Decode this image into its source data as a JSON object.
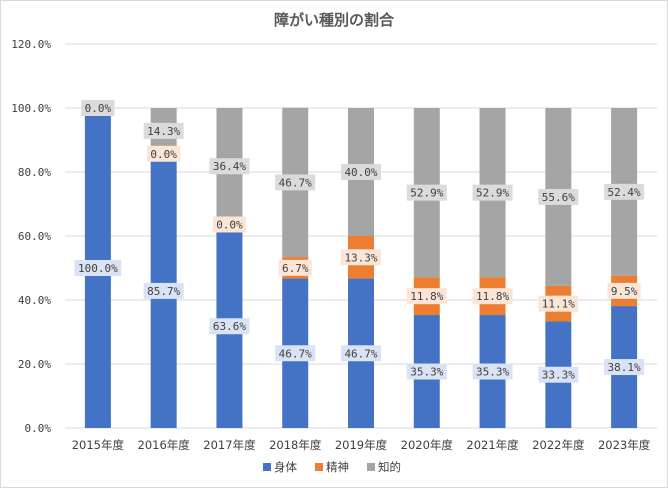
{
  "chart_data": {
    "type": "bar",
    "stacked": true,
    "title": "障がい種別の割合",
    "xlabel": "",
    "ylabel": "",
    "ylim": [
      0,
      120
    ],
    "yticks": [
      "0.0%",
      "20.0%",
      "40.0%",
      "60.0%",
      "80.0%",
      "100.0%",
      "120.0%"
    ],
    "ytick_values": [
      0,
      20,
      40,
      60,
      80,
      100,
      120
    ],
    "grid": true,
    "legend_position": "bottom",
    "categories": [
      "2015年度",
      "2016年度",
      "2017年度",
      "2018年度",
      "2019年度",
      "2020年度",
      "2021年度",
      "2022年度",
      "2023年度"
    ],
    "series": [
      {
        "name": "身体",
        "color": "#4472c4",
        "label_bg": "#dae3f3",
        "values": [
          100.0,
          85.7,
          63.6,
          46.7,
          46.7,
          35.3,
          35.3,
          33.3,
          38.1
        ],
        "labels": [
          "100.0%",
          "85.7%",
          "63.6%",
          "46.7%",
          "46.7%",
          "35.3%",
          "35.3%",
          "33.3%",
          "38.1%"
        ]
      },
      {
        "name": "精神",
        "color": "#ed7d31",
        "label_bg": "#fbe5d6",
        "values": [
          0.0,
          0.0,
          0.0,
          6.7,
          13.3,
          11.8,
          11.8,
          11.1,
          9.5
        ],
        "labels": [
          "0.0%",
          "0.0%",
          "0.0%",
          "6.7%",
          "13.3%",
          "11.8%",
          "11.8%",
          "11.1%",
          "9.5%"
        ]
      },
      {
        "name": "知的",
        "color": "#a5a5a5",
        "label_bg": "#dbdbdb",
        "values": [
          0.0,
          14.3,
          36.4,
          46.7,
          40.0,
          52.9,
          52.9,
          55.6,
          52.4
        ],
        "labels": [
          "0.0%",
          "14.3%",
          "36.4%",
          "46.7%",
          "40.0%",
          "52.9%",
          "52.9%",
          "55.6%",
          "52.4%"
        ]
      }
    ]
  }
}
